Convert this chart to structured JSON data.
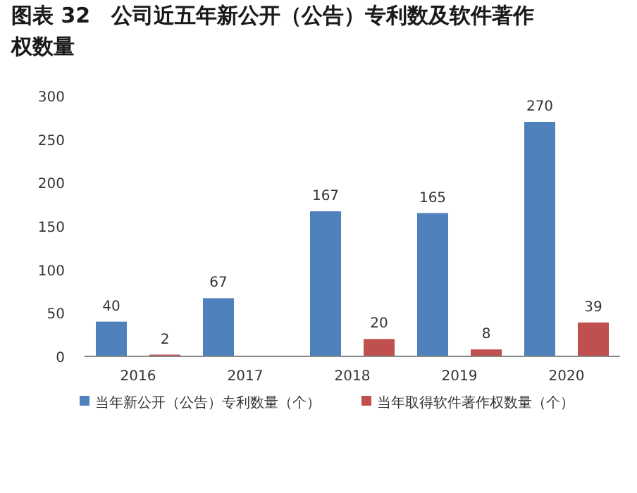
{
  "chart_data": {
    "type": "bar",
    "title": "图表 32　公司近五年新公开（公告）专利数及软件著作权数量",
    "categories": [
      "2016",
      "2017",
      "2018",
      "2019",
      "2020"
    ],
    "series": [
      {
        "name": "当年新公开（公告）专利数量（个）",
        "color": "#4f81bd",
        "values": [
          40,
          67,
          167,
          165,
          270
        ]
      },
      {
        "name": "当年取得软件著作权数量（个）",
        "color": "#c0504d",
        "values": [
          2,
          null,
          20,
          8,
          39
        ]
      }
    ],
    "ylim": [
      0,
      300
    ],
    "yticks": [
      0,
      50,
      100,
      150,
      200,
      250,
      300
    ],
    "data_labels": true,
    "grid": false,
    "legend": "bottom"
  }
}
